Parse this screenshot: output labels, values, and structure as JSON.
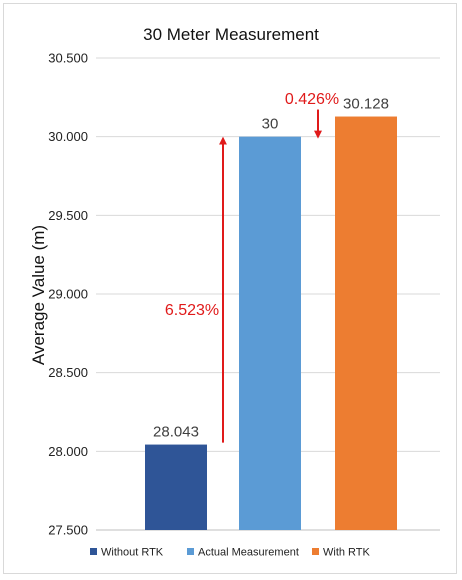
{
  "chart_data": {
    "type": "bar",
    "title": "30 Meter Measurement",
    "xlabel": "",
    "ylabel": "Average Value (m)",
    "ylim": [
      27.5,
      30.5
    ],
    "yticks": [
      "27.500",
      "28.000",
      "28.500",
      "29.000",
      "29.500",
      "30.000",
      "30.500"
    ],
    "grid": true,
    "legend_position": "bottom",
    "categories": [
      "Without RTK",
      "Actual Measurement",
      "With RTK"
    ],
    "values": [
      28.043,
      30,
      30.128
    ],
    "data_labels": [
      "28.043",
      "30",
      "30.128"
    ],
    "colors": [
      "#2f5597",
      "#5b9bd5",
      "#ed7d31"
    ],
    "legend": [
      "Without RTK",
      "Actual Measurement",
      "With RTK"
    ],
    "annotations": [
      {
        "text": "6.523%",
        "color": "#e01a1a"
      },
      {
        "text": "0.426%",
        "color": "#e01a1a"
      }
    ]
  }
}
